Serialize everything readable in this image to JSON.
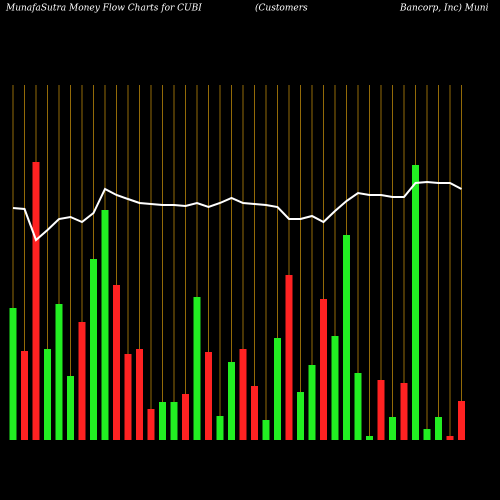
{
  "chart_data": {
    "type": "bar",
    "title": "MunafaSutra  Money Flow  Charts for CUBI",
    "subtitle_parts": [
      "(Customers",
      "Bancorp,  Inc) Muni"
    ],
    "background": "#000000",
    "grid_color": "#b8860b",
    "categories": [
      null,
      null,
      null,
      null,
      null,
      null,
      null,
      null,
      null,
      null,
      null,
      null,
      null,
      null,
      null,
      null,
      null,
      null,
      null,
      null,
      null,
      null,
      null,
      null,
      null,
      null,
      null,
      null,
      null,
      null,
      null,
      null,
      null,
      null,
      null,
      null,
      null,
      null,
      null,
      null
    ],
    "values": [
      132,
      89,
      278,
      91,
      136,
      64,
      118,
      181,
      230,
      155,
      86,
      91,
      31,
      38,
      38,
      46,
      143,
      88,
      24,
      78,
      91,
      54,
      20,
      102,
      165,
      48,
      75,
      141,
      104,
      205,
      67,
      4,
      60,
      23,
      57,
      275,
      11,
      23,
      4,
      39
    ],
    "colors": [
      "#22ee22",
      "#ff2222",
      "#ff2222",
      "#22ee22",
      "#22ee22",
      "#22ee22",
      "#ff2222",
      "#22ee22",
      "#22ee22",
      "#ff2222",
      "#ff2222",
      "#ff2222",
      "#ff2222",
      "#22ee22",
      "#22ee22",
      "#ff2222",
      "#22ee22",
      "#ff2222",
      "#22ee22",
      "#22ee22",
      "#ff2222",
      "#ff2222",
      "#22ee22",
      "#22ee22",
      "#ff2222",
      "#22ee22",
      "#22ee22",
      "#ff2222",
      "#22ee22",
      "#22ee22",
      "#22ee22",
      "#22ee22",
      "#ff2222",
      "#22ee22",
      "#ff2222",
      "#22ee22",
      "#22ee22",
      "#22ee22",
      "#ff2222",
      "#ff2222"
    ],
    "line": {
      "color": "#ffffff",
      "values": [
        232,
        231,
        200,
        210,
        221,
        223,
        218,
        227,
        251,
        245,
        241,
        237,
        236,
        235,
        235,
        234,
        237,
        233,
        237,
        242,
        237,
        236,
        235,
        233,
        221,
        221,
        224,
        218,
        229,
        239,
        247,
        245,
        245,
        243,
        243,
        257,
        258,
        257,
        257,
        251
      ]
    },
    "ylim": [
      0,
      380
    ]
  }
}
